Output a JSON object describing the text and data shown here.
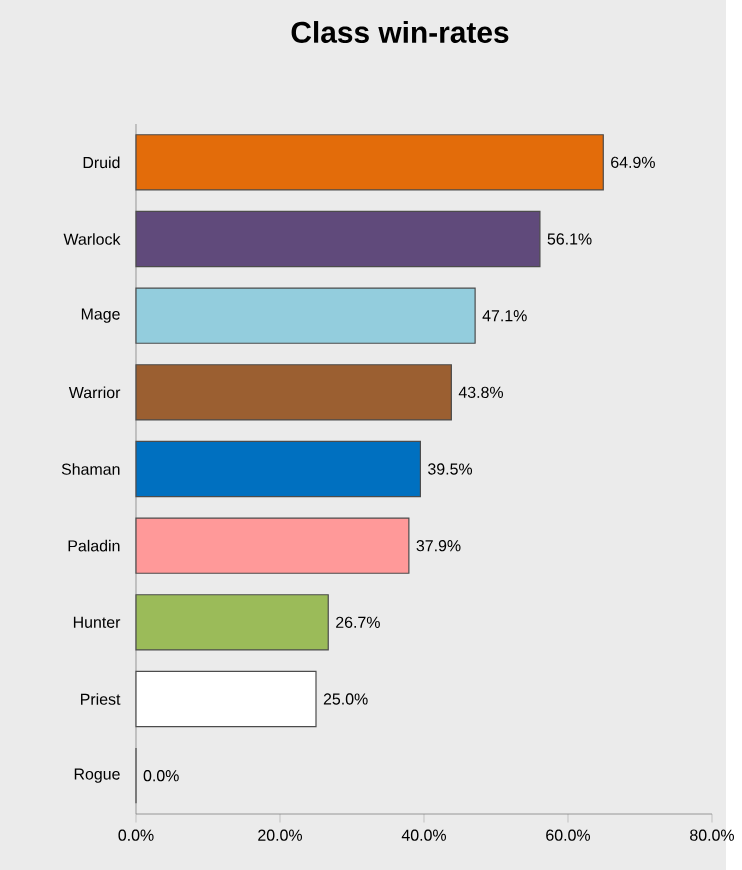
{
  "chart_data": {
    "type": "bar",
    "orientation": "horizontal",
    "title": "Class win-rates",
    "categories": [
      "Druid",
      "Warlock",
      "Mage",
      "Warrior",
      "Shaman",
      "Paladin",
      "Hunter",
      "Priest",
      "Rogue"
    ],
    "values": [
      64.9,
      56.1,
      47.1,
      43.8,
      39.5,
      37.9,
      26.7,
      25.0,
      0.0
    ],
    "colors": [
      "#e36c0a",
      "#604a7b",
      "#93cddd",
      "#9b5f31",
      "#0070c0",
      "#ff9999",
      "#9bbb59",
      "#ffffff",
      "#000000"
    ],
    "value_labels": [
      "64.9%",
      "56.1%",
      "47.1%",
      "43.8%",
      "39.5%",
      "37.9%",
      "26.7%",
      "25.0%",
      "0.0%"
    ],
    "xlim": [
      0,
      80
    ],
    "xticks": [
      {
        "value": 0,
        "label": "0.0%"
      },
      {
        "value": 20,
        "label": "20.0%"
      },
      {
        "value": 40,
        "label": "40.0%"
      },
      {
        "value": 60,
        "label": "60.0%"
      },
      {
        "value": 80,
        "label": "80.0%"
      }
    ]
  }
}
